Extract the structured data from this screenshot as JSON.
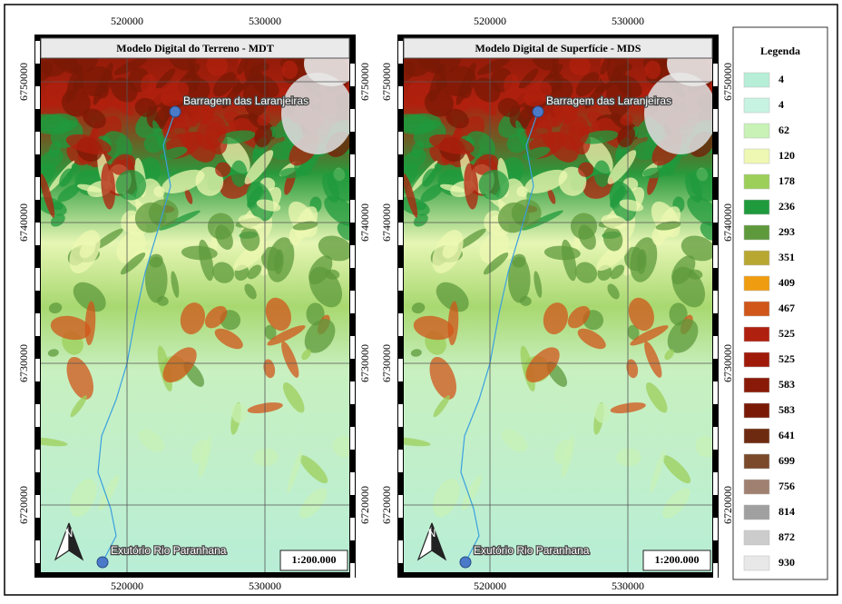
{
  "maps": [
    {
      "title": "Modelo Digital do Terreno - MDT",
      "x_labels": [
        520000,
        530000
      ],
      "y_labels": [
        6750000,
        6740000,
        6730000,
        6720000
      ],
      "points": [
        {
          "label": "Barragem das Laranjeiras"
        },
        {
          "label": "Exutório Rio Paranhana"
        }
      ],
      "scale": "1:200.000",
      "north": "N"
    },
    {
      "title": "Modelo Digital de Superfície - MDS",
      "x_labels": [
        520000,
        530000
      ],
      "y_labels": [
        6750000,
        6740000,
        6730000,
        6720000
      ],
      "points": [
        {
          "label": "Barragem das Laranjeiras"
        },
        {
          "label": "Exutório Rio Paranhana"
        }
      ],
      "scale": "1:200.000",
      "north": "N"
    }
  ],
  "legend": {
    "title": "Legenda",
    "items": [
      {
        "label": 4,
        "color": "#b6eed8"
      },
      {
        "label": 4,
        "color": "#c6f3e2"
      },
      {
        "label": 62,
        "color": "#c8f2b6"
      },
      {
        "label": 120,
        "color": "#eef8b2"
      },
      {
        "label": 178,
        "color": "#9ccf5a"
      },
      {
        "label": 236,
        "color": "#1f9a3c"
      },
      {
        "label": 293,
        "color": "#5e9a3c"
      },
      {
        "label": 351,
        "color": "#b8a832"
      },
      {
        "label": 409,
        "color": "#f09c10"
      },
      {
        "label": 467,
        "color": "#d0561a"
      },
      {
        "label": 525,
        "color": "#b0200e"
      },
      {
        "label": 525,
        "color": "#a01a0a"
      },
      {
        "label": 583,
        "color": "#8a1a08"
      },
      {
        "label": 583,
        "color": "#7a1a06"
      },
      {
        "label": 641,
        "color": "#6e2a10"
      },
      {
        "label": 699,
        "color": "#7a4a2a"
      },
      {
        "label": 756,
        "color": "#a08070"
      },
      {
        "label": 814,
        "color": "#a0a0a0"
      },
      {
        "label": 872,
        "color": "#cccccc"
      },
      {
        "label": 930,
        "color": "#e8e8e8"
      }
    ]
  }
}
